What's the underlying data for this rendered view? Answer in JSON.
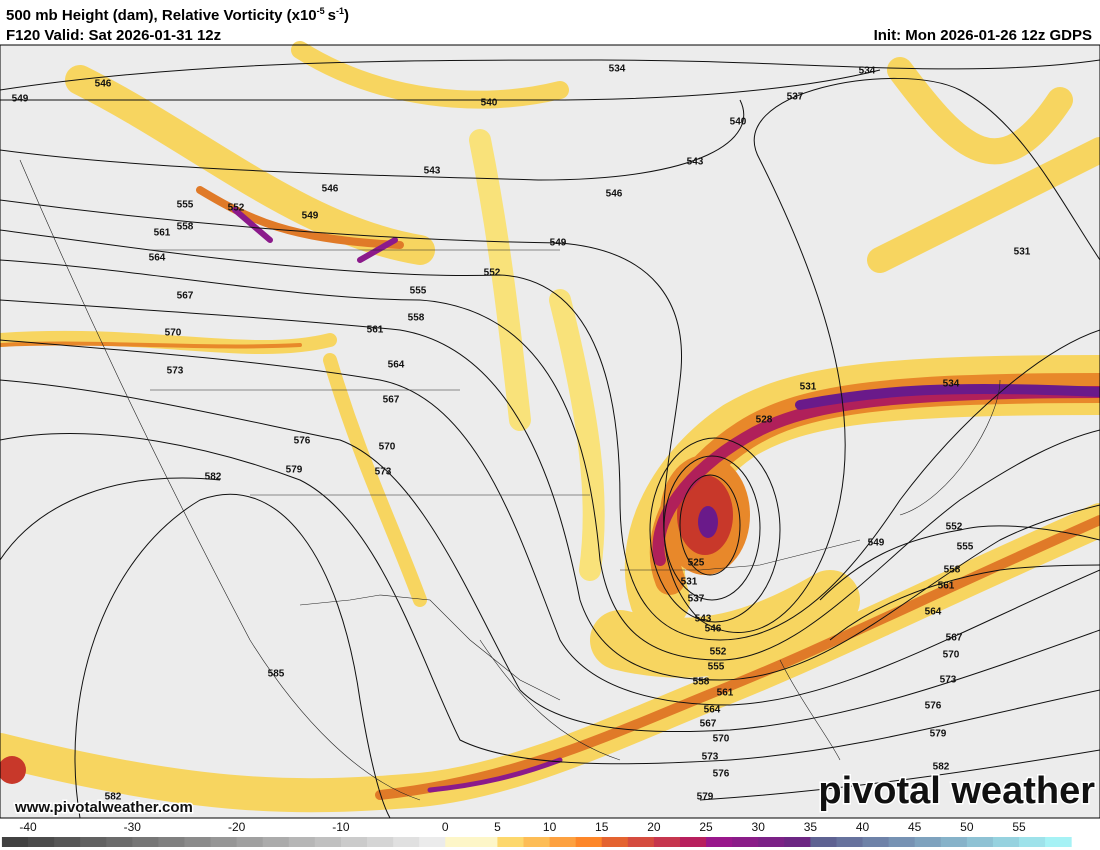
{
  "header": {
    "title": {
      "main": "500 mb Height (dam), Relative Vorticity (x10",
      "exp1": "-5",
      "unit": "s",
      "exp2": "-1",
      "close": ")"
    },
    "valid": "F120 Valid: Sat 2026-01-31 12z",
    "init": "Init: Mon 2026-01-26 12z GDPS"
  },
  "map": {
    "contour_labels": [
      546,
      549,
      540,
      534,
      534,
      537,
      540,
      543,
      543,
      546,
      546,
      549,
      549,
      552,
      555,
      558,
      561,
      564,
      567,
      570,
      573,
      576,
      579,
      582,
      552,
      555,
      558,
      561,
      564,
      567,
      570,
      573,
      531,
      534,
      528,
      525,
      531,
      537,
      543,
      546,
      549,
      552,
      555,
      558,
      561,
      564,
      567,
      570,
      573,
      576,
      579,
      582,
      552,
      555,
      558,
      561,
      564,
      567,
      570,
      573,
      576,
      579,
      585,
      582,
      531
    ]
  },
  "footer": {
    "website": "www.pivotalweather.com",
    "logo": "pivotal weather"
  },
  "colorbar": {
    "ticks": [
      -40,
      -30,
      -20,
      -10,
      0,
      5,
      10,
      15,
      20,
      25,
      30,
      35,
      40,
      45,
      50,
      55
    ]
  }
}
